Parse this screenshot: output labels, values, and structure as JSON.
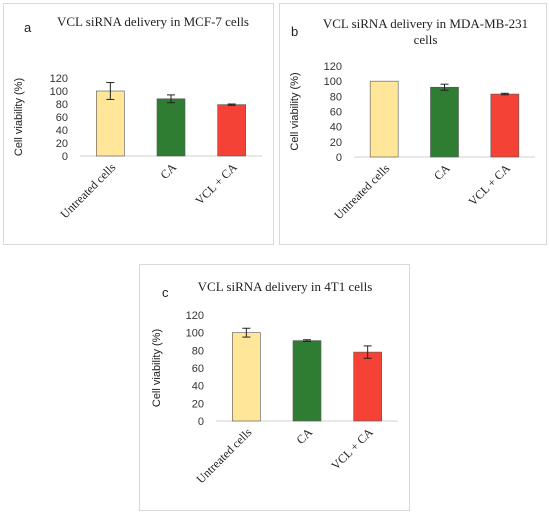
{
  "chart_data": [
    {
      "panel": "a",
      "type": "bar",
      "title": "VCL siRNA delivery in MCF-7 cells",
      "ylabel": "Cell viability  (%)",
      "ylim": [
        0,
        120
      ],
      "yticks": [
        0,
        20,
        40,
        60,
        80,
        100,
        120
      ],
      "categories": [
        "Untreated cells",
        "CA",
        "VCL + CA"
      ],
      "values": [
        100,
        88,
        79
      ],
      "errors": [
        13,
        6,
        1
      ],
      "colors": [
        "#ffe699",
        "#2e7d32",
        "#f44336"
      ]
    },
    {
      "panel": "b",
      "type": "bar",
      "title": "VCL siRNA delivery in MDA-MB-231 cells",
      "ylabel": "Cell viability  (%)",
      "ylim": [
        0,
        120
      ],
      "yticks": [
        0,
        20,
        40,
        60,
        80,
        100,
        120
      ],
      "categories": [
        "Untreated cells",
        "CA",
        "VCL + CA"
      ],
      "values": [
        100,
        92,
        83
      ],
      "errors": [
        0,
        4,
        1
      ],
      "colors": [
        "#ffe699",
        "#2e7d32",
        "#f44336"
      ]
    },
    {
      "panel": "c",
      "type": "bar",
      "title": "VCL siRNA delivery in 4T1 cells",
      "ylabel": "Cell viability  (%)",
      "ylim": [
        0,
        120
      ],
      "yticks": [
        0,
        20,
        40,
        60,
        80,
        100,
        120
      ],
      "categories": [
        "Untreated cells",
        "CA",
        "VCL + CA"
      ],
      "values": [
        100,
        91,
        78
      ],
      "errors": [
        5,
        1,
        7
      ],
      "colors": [
        "#ffe699",
        "#2e7d32",
        "#f44336"
      ]
    }
  ]
}
